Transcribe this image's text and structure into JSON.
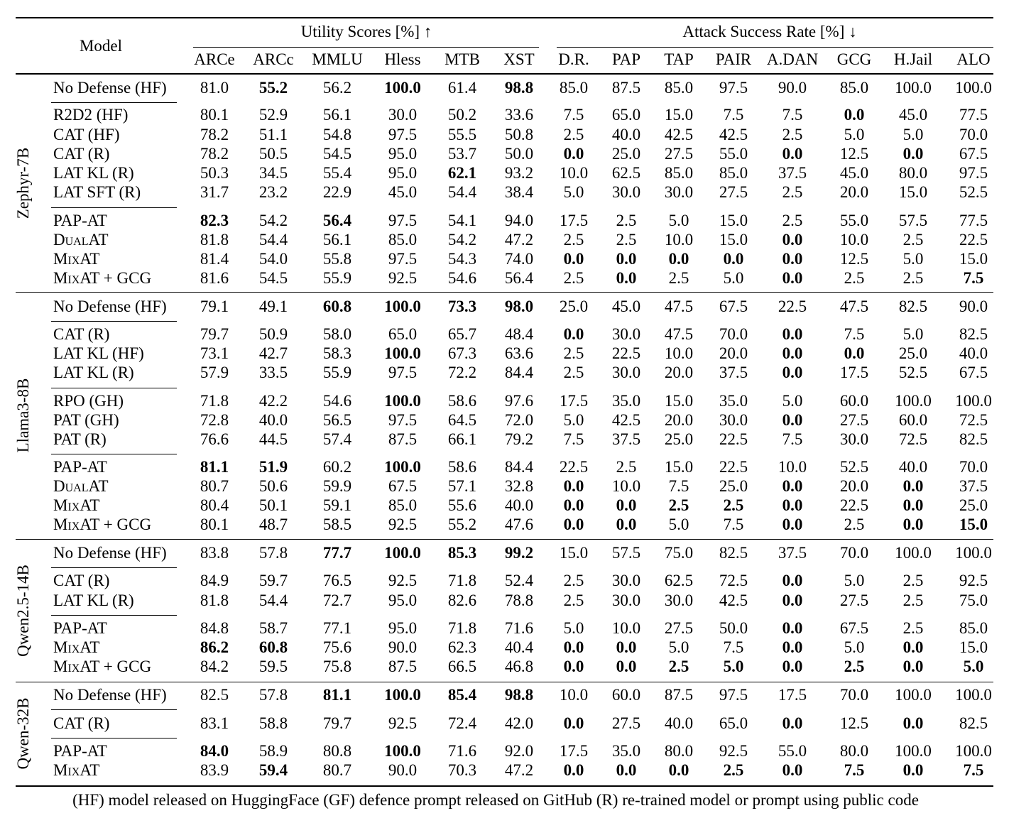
{
  "header": {
    "model_label": "Model",
    "utility_group": "Utility Scores [%] ↑",
    "attack_group": "Attack Success Rate [%] ↓",
    "columns": [
      "ARCe",
      "ARCc",
      "MMLU",
      "Hless",
      "MTB",
      "XST",
      "D.R.",
      "PAP",
      "TAP",
      "PAIR",
      "A.DAN",
      "GCG",
      "H.Jail",
      "ALO"
    ]
  },
  "groups": [
    {
      "name": "Zephyr-7B",
      "rows": [
        {
          "model": "No Defense (HF)",
          "values": [
            "81.0",
            "55.2",
            "56.2",
            "100.0",
            "61.4",
            "98.8",
            "85.0",
            "87.5",
            "85.0",
            "97.5",
            "90.0",
            "85.0",
            "100.0",
            "100.0"
          ],
          "bold": [
            1,
            3,
            5
          ]
        },
        {
          "model": "R2D2 (HF)",
          "values": [
            "80.1",
            "52.9",
            "56.1",
            "30.0",
            "50.2",
            "33.6",
            "7.5",
            "65.0",
            "15.0",
            "7.5",
            "7.5",
            "0.0",
            "45.0",
            "77.5"
          ],
          "bold": [
            11
          ]
        },
        {
          "model": "CAT (HF)",
          "values": [
            "78.2",
            "51.1",
            "54.8",
            "97.5",
            "55.5",
            "50.8",
            "2.5",
            "40.0",
            "42.5",
            "42.5",
            "2.5",
            "5.0",
            "5.0",
            "70.0"
          ],
          "bold": []
        },
        {
          "model": "CAT (R)",
          "values": [
            "78.2",
            "50.5",
            "54.5",
            "95.0",
            "53.7",
            "50.0",
            "0.0",
            "25.0",
            "27.5",
            "55.0",
            "0.0",
            "12.5",
            "0.0",
            "67.5"
          ],
          "bold": [
            6,
            10,
            12
          ]
        },
        {
          "model": "LAT KL (R)",
          "values": [
            "50.3",
            "34.5",
            "55.4",
            "95.0",
            "62.1",
            "93.2",
            "10.0",
            "62.5",
            "85.0",
            "85.0",
            "37.5",
            "45.0",
            "80.0",
            "97.5"
          ],
          "bold": [
            4
          ]
        },
        {
          "model": "LAT SFT (R)",
          "values": [
            "31.7",
            "23.2",
            "22.9",
            "45.0",
            "54.4",
            "38.4",
            "5.0",
            "30.0",
            "30.0",
            "27.5",
            "2.5",
            "20.0",
            "15.0",
            "52.5"
          ],
          "bold": []
        },
        {
          "model": "PAP-AT",
          "values": [
            "82.3",
            "54.2",
            "56.4",
            "97.5",
            "54.1",
            "94.0",
            "17.5",
            "2.5",
            "5.0",
            "15.0",
            "2.5",
            "55.0",
            "57.5",
            "77.5"
          ],
          "bold": [
            0,
            2
          ]
        },
        {
          "model": "DualAT",
          "values": [
            "81.8",
            "54.4",
            "56.1",
            "85.0",
            "54.2",
            "47.2",
            "2.5",
            "2.5",
            "10.0",
            "15.0",
            "0.0",
            "10.0",
            "2.5",
            "22.5"
          ],
          "bold": [
            10
          ],
          "sc": true
        },
        {
          "model": "MixAT",
          "values": [
            "81.4",
            "54.0",
            "55.8",
            "97.5",
            "54.3",
            "74.0",
            "0.0",
            "0.0",
            "0.0",
            "0.0",
            "0.0",
            "12.5",
            "5.0",
            "15.0"
          ],
          "bold": [
            6,
            7,
            8,
            9,
            10
          ],
          "sc": true
        },
        {
          "model": "MixAT + GCG",
          "values": [
            "81.6",
            "54.5",
            "55.9",
            "92.5",
            "54.6",
            "56.4",
            "2.5",
            "0.0",
            "2.5",
            "5.0",
            "0.0",
            "2.5",
            "2.5",
            "7.5"
          ],
          "bold": [
            7,
            10,
            13
          ],
          "sc": true
        }
      ]
    },
    {
      "name": "Llama3-8B",
      "rows": [
        {
          "model": "No Defense (HF)",
          "values": [
            "79.1",
            "49.1",
            "60.8",
            "100.0",
            "73.3",
            "98.0",
            "25.0",
            "45.0",
            "47.5",
            "67.5",
            "22.5",
            "47.5",
            "82.5",
            "90.0"
          ],
          "bold": [
            2,
            3,
            4,
            5
          ]
        },
        {
          "model": "CAT (R)",
          "values": [
            "79.7",
            "50.9",
            "58.0",
            "65.0",
            "65.7",
            "48.4",
            "0.0",
            "30.0",
            "47.5",
            "70.0",
            "0.0",
            "7.5",
            "5.0",
            "82.5"
          ],
          "bold": [
            6,
            10
          ]
        },
        {
          "model": "LAT KL (HF)",
          "values": [
            "73.1",
            "42.7",
            "58.3",
            "100.0",
            "67.3",
            "63.6",
            "2.5",
            "22.5",
            "10.0",
            "20.0",
            "0.0",
            "0.0",
            "25.0",
            "40.0"
          ],
          "bold": [
            3,
            10,
            11
          ]
        },
        {
          "model": "LAT KL (R)",
          "values": [
            "57.9",
            "33.5",
            "55.9",
            "97.5",
            "72.2",
            "84.4",
            "2.5",
            "30.0",
            "20.0",
            "37.5",
            "0.0",
            "17.5",
            "52.5",
            "67.5"
          ],
          "bold": [
            10
          ]
        },
        {
          "model": "RPO (GH)",
          "values": [
            "71.8",
            "42.2",
            "54.6",
            "100.0",
            "58.6",
            "97.6",
            "17.5",
            "35.0",
            "15.0",
            "35.0",
            "5.0",
            "60.0",
            "100.0",
            "100.0"
          ],
          "bold": [
            3
          ]
        },
        {
          "model": "PAT (GH)",
          "values": [
            "72.8",
            "40.0",
            "56.5",
            "97.5",
            "64.5",
            "72.0",
            "5.0",
            "42.5",
            "20.0",
            "30.0",
            "0.0",
            "27.5",
            "60.0",
            "72.5"
          ],
          "bold": [
            10
          ]
        },
        {
          "model": "PAT (R)",
          "values": [
            "76.6",
            "44.5",
            "57.4",
            "87.5",
            "66.1",
            "79.2",
            "7.5",
            "37.5",
            "25.0",
            "22.5",
            "7.5",
            "30.0",
            "72.5",
            "82.5"
          ],
          "bold": []
        },
        {
          "model": "PAP-AT",
          "values": [
            "81.1",
            "51.9",
            "60.2",
            "100.0",
            "58.6",
            "84.4",
            "22.5",
            "2.5",
            "15.0",
            "22.5",
            "10.0",
            "52.5",
            "40.0",
            "70.0"
          ],
          "bold": [
            0,
            1,
            3
          ]
        },
        {
          "model": "DualAT",
          "values": [
            "80.7",
            "50.6",
            "59.9",
            "67.5",
            "57.1",
            "32.8",
            "0.0",
            "10.0",
            "7.5",
            "25.0",
            "0.0",
            "20.0",
            "0.0",
            "37.5"
          ],
          "bold": [
            6,
            10,
            12
          ],
          "sc": true
        },
        {
          "model": "MixAT",
          "values": [
            "80.4",
            "50.1",
            "59.1",
            "85.0",
            "55.6",
            "40.0",
            "0.0",
            "0.0",
            "2.5",
            "2.5",
            "0.0",
            "22.5",
            "0.0",
            "25.0"
          ],
          "bold": [
            6,
            7,
            8,
            9,
            10,
            12
          ],
          "sc": true
        },
        {
          "model": "MixAT + GCG",
          "values": [
            "80.1",
            "48.7",
            "58.5",
            "92.5",
            "55.2",
            "47.6",
            "0.0",
            "0.0",
            "5.0",
            "7.5",
            "0.0",
            "2.5",
            "0.0",
            "15.0"
          ],
          "bold": [
            6,
            7,
            10,
            12,
            13
          ],
          "sc": true
        }
      ]
    },
    {
      "name": "Qwen2.5-14B",
      "rows": [
        {
          "model": "No Defense (HF)",
          "values": [
            "83.8",
            "57.8",
            "77.7",
            "100.0",
            "85.3",
            "99.2",
            "15.0",
            "57.5",
            "75.0",
            "82.5",
            "37.5",
            "70.0",
            "100.0",
            "100.0"
          ],
          "bold": [
            2,
            3,
            4,
            5
          ]
        },
        {
          "model": "CAT (R)",
          "values": [
            "84.9",
            "59.7",
            "76.5",
            "92.5",
            "71.8",
            "52.4",
            "2.5",
            "30.0",
            "62.5",
            "72.5",
            "0.0",
            "5.0",
            "2.5",
            "92.5"
          ],
          "bold": [
            10
          ]
        },
        {
          "model": "LAT KL (R)",
          "values": [
            "81.8",
            "54.4",
            "72.7",
            "95.0",
            "82.6",
            "78.8",
            "2.5",
            "30.0",
            "30.0",
            "42.5",
            "0.0",
            "27.5",
            "2.5",
            "75.0"
          ],
          "bold": [
            10
          ]
        },
        {
          "model": "PAP-AT",
          "values": [
            "84.8",
            "58.7",
            "77.1",
            "95.0",
            "71.8",
            "71.6",
            "5.0",
            "10.0",
            "27.5",
            "50.0",
            "0.0",
            "67.5",
            "2.5",
            "85.0"
          ],
          "bold": [
            10
          ]
        },
        {
          "model": "MixAT",
          "values": [
            "86.2",
            "60.8",
            "75.6",
            "90.0",
            "62.3",
            "40.4",
            "0.0",
            "0.0",
            "5.0",
            "7.5",
            "0.0",
            "5.0",
            "0.0",
            "15.0"
          ],
          "bold": [
            0,
            1,
            6,
            7,
            10,
            12
          ],
          "sc": true
        },
        {
          "model": "MixAT + GCG",
          "values": [
            "84.2",
            "59.5",
            "75.8",
            "87.5",
            "66.5",
            "46.8",
            "0.0",
            "0.0",
            "2.5",
            "5.0",
            "0.0",
            "2.5",
            "0.0",
            "5.0"
          ],
          "bold": [
            6,
            7,
            8,
            9,
            10,
            11,
            12,
            13
          ],
          "sc": true
        }
      ]
    },
    {
      "name": "Qwen-32B",
      "rows": [
        {
          "model": "No Defense (HF)",
          "values": [
            "82.5",
            "57.8",
            "81.1",
            "100.0",
            "85.4",
            "98.8",
            "10.0",
            "60.0",
            "87.5",
            "97.5",
            "17.5",
            "70.0",
            "100.0",
            "100.0"
          ],
          "bold": [
            2,
            3,
            4,
            5
          ]
        },
        {
          "model": "CAT (R)",
          "values": [
            "83.1",
            "58.8",
            "79.7",
            "92.5",
            "72.4",
            "42.0",
            "0.0",
            "27.5",
            "40.0",
            "65.0",
            "0.0",
            "12.5",
            "0.0",
            "82.5"
          ],
          "bold": [
            6,
            10,
            12
          ]
        },
        {
          "model": "PAP-AT",
          "values": [
            "84.0",
            "58.9",
            "80.8",
            "100.0",
            "71.6",
            "92.0",
            "17.5",
            "35.0",
            "80.0",
            "92.5",
            "55.0",
            "80.0",
            "100.0",
            "100.0"
          ],
          "bold": [
            0,
            3
          ]
        },
        {
          "model": "MixAT",
          "values": [
            "83.9",
            "59.4",
            "80.7",
            "90.0",
            "70.3",
            "47.2",
            "0.0",
            "0.0",
            "0.0",
            "2.5",
            "0.0",
            "7.5",
            "0.0",
            "7.5"
          ],
          "bold": [
            1,
            6,
            7,
            8,
            9,
            10,
            11,
            12,
            13
          ],
          "sc": true
        }
      ]
    }
  ],
  "footnote": "(HF) model released on HuggingFace (GF) defence prompt released on GitHub (R) re-trained model or prompt using public code"
}
